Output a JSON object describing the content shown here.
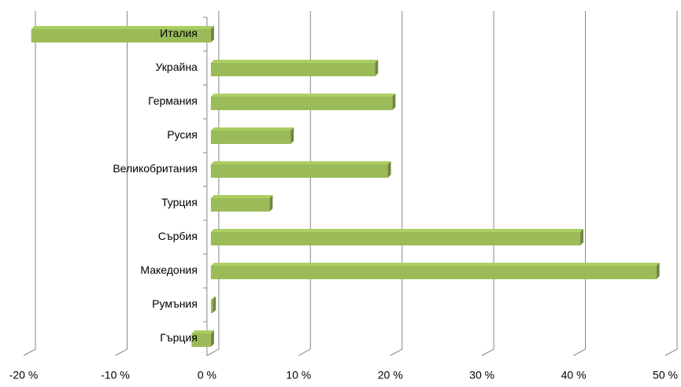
{
  "chart_data": {
    "type": "bar3d_horizontal",
    "categories": [
      "Италия",
      "Украйна",
      "Германия",
      "Русия",
      "Великобритания",
      "Турция",
      "Сърбия",
      "Македония",
      "Румъния",
      "Гърция"
    ],
    "values": [
      -19.6,
      17.9,
      19.8,
      8.7,
      19.3,
      6.4,
      40.3,
      48.6,
      0.2,
      -2.1
    ],
    "color": "#9bbb59",
    "xlim": [
      -20,
      50
    ],
    "xticks": [
      {
        "value": -20,
        "label": "-20 %"
      },
      {
        "value": -10,
        "label": "-10 %"
      },
      {
        "value": 0,
        "label": "0 %"
      },
      {
        "value": 10,
        "label": "10 %"
      },
      {
        "value": 20,
        "label": "20 %"
      },
      {
        "value": 30,
        "label": "30 %"
      },
      {
        "value": 40,
        "label": "40 %"
      },
      {
        "value": 50,
        "label": "50 %"
      }
    ],
    "grid": true
  }
}
